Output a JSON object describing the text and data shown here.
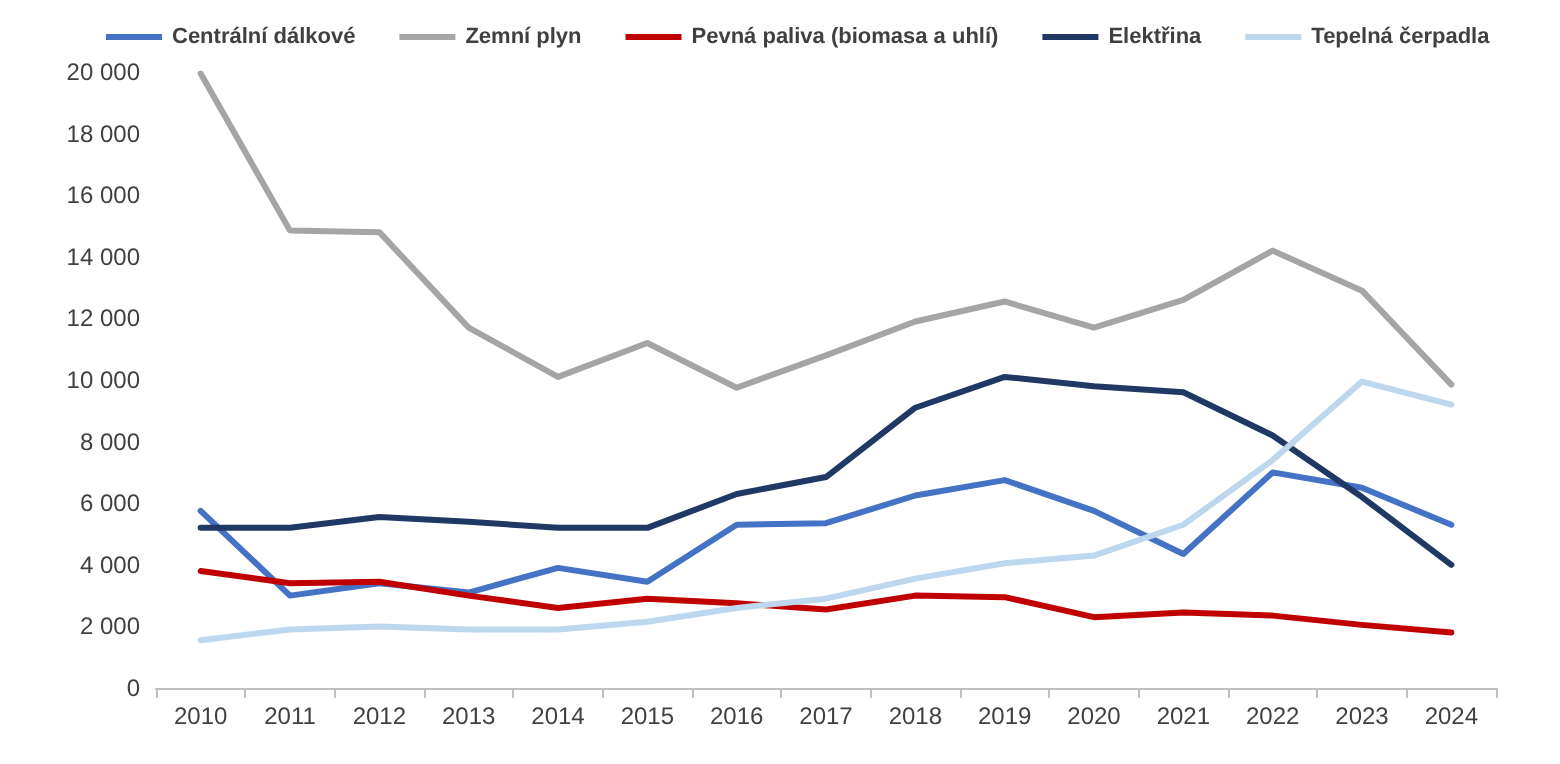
{
  "chart_data": {
    "type": "line",
    "categories": [
      "2010",
      "2011",
      "2012",
      "2013",
      "2014",
      "2015",
      "2016",
      "2017",
      "2018",
      "2019",
      "2020",
      "2021",
      "2022",
      "2023",
      "2024"
    ],
    "series": [
      {
        "name": "Centrální dálkové",
        "color": "#4472c4",
        "values": [
          5750,
          3000,
          3400,
          3100,
          3900,
          3450,
          5300,
          5350,
          6250,
          6750,
          5750,
          4350,
          7000,
          6500,
          5300
        ]
      },
      {
        "name": "Zemní plyn",
        "color": "#a5a5a5",
        "values": [
          19950,
          14850,
          14800,
          11700,
          10100,
          11200,
          9750,
          10800,
          11900,
          12550,
          11700,
          12600,
          14200,
          12900,
          9850
        ]
      },
      {
        "name": "Pevná paliva (biomasa a uhlí)",
        "color": "#c00000",
        "values": [
          3800,
          3400,
          3450,
          3000,
          2600,
          2900,
          2750,
          2550,
          3000,
          2950,
          2300,
          2450,
          2350,
          2050,
          1800
        ]
      },
      {
        "name": "Elektřina",
        "color": "#203864",
        "values": [
          5200,
          5200,
          5550,
          5400,
          5200,
          5200,
          6300,
          6850,
          9100,
          10100,
          9800,
          9600,
          8200,
          6200,
          4000
        ]
      },
      {
        "name": "Tepelná čerpadla",
        "color": "#bdd7ee",
        "values": [
          1550,
          1900,
          2000,
          1900,
          1900,
          2150,
          2600,
          2900,
          3550,
          4050,
          4300,
          5300,
          7400,
          9950,
          9200
        ]
      }
    ],
    "ylim": [
      0,
      20000
    ],
    "yticks": [
      0,
      {
        "value": 2000,
        "label": "2 000"
      },
      {
        "value": 4000,
        "label": "4 000"
      },
      {
        "value": 6000,
        "label": "6 000"
      },
      {
        "value": 8000,
        "label": "8 000"
      },
      {
        "value": 10000,
        "label": "10 000"
      },
      {
        "value": 12000,
        "label": "12 000"
      },
      {
        "value": 14000,
        "label": "14 000"
      },
      {
        "value": 16000,
        "label": "16 000"
      },
      {
        "value": 18000,
        "label": "18 000"
      },
      {
        "value": 20000,
        "label": "20 000"
      }
    ],
    "legend": "top",
    "grid": false,
    "marker": "none",
    "line_style": "solid"
  }
}
